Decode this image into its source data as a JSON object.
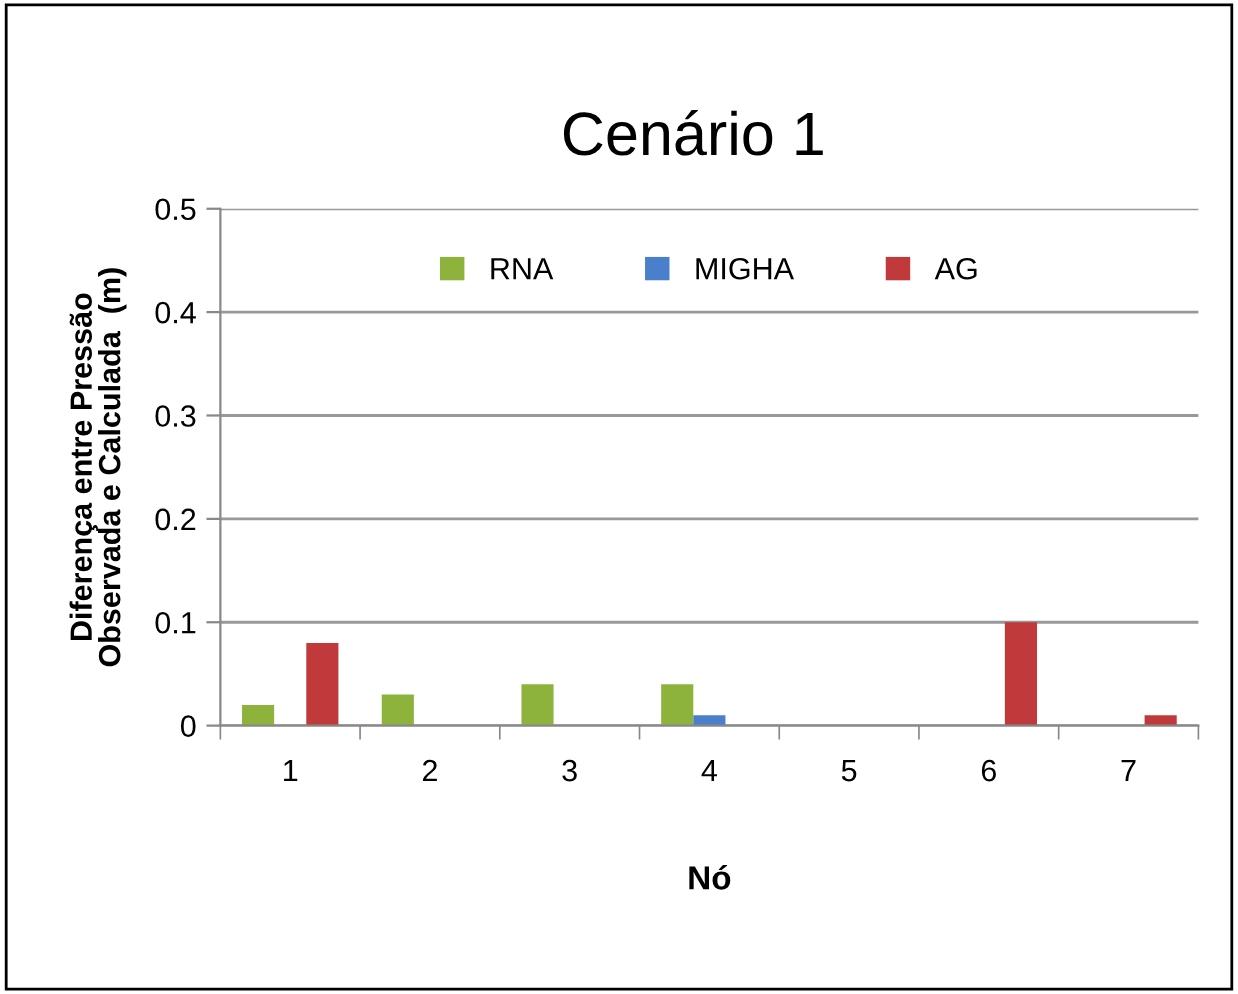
{
  "chart_data": {
    "type": "bar",
    "title": "Cenário 1",
    "xlabel": "Nó",
    "ylabel": "Diferença entre Pressão\nObservada e Calculada  (m)",
    "categories": [
      "1",
      "2",
      "3",
      "4",
      "5",
      "6",
      "7"
    ],
    "series": [
      {
        "name": "RNA",
        "color": "#8db33c",
        "values": [
          0.02,
          0.03,
          0.04,
          0.04,
          0,
          0,
          0
        ]
      },
      {
        "name": "MIGHA",
        "color": "#4a7fcc",
        "values": [
          0,
          0,
          0,
          0.01,
          0,
          0,
          0
        ]
      },
      {
        "name": "AG",
        "color": "#c0393b",
        "values": [
          0.08,
          0,
          0,
          0,
          0,
          0.1,
          0.01
        ]
      }
    ],
    "ylim": [
      0,
      0.5
    ],
    "yticks": [
      0,
      0.1,
      0.2,
      0.3,
      0.4,
      0.5
    ],
    "grid": "y",
    "legend": "top"
  }
}
